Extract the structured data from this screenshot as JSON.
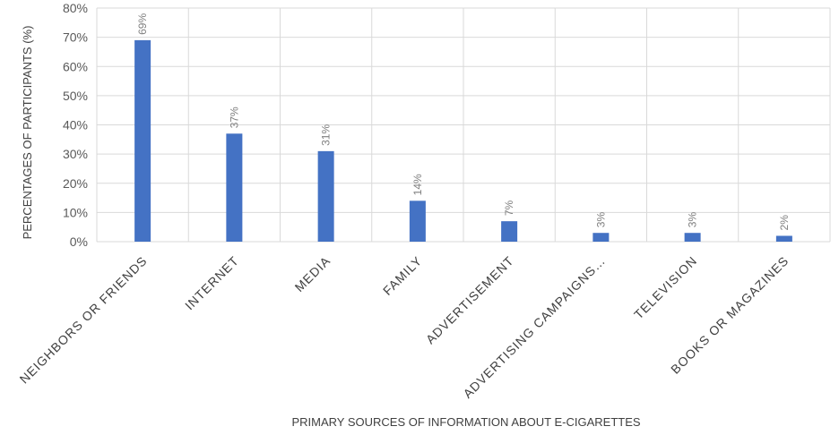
{
  "chart_data": {
    "type": "bar",
    "categories": [
      "NEIGHBORS OR FRIENDS",
      "INTERNET",
      "MEDIA",
      "FAMILY",
      "ADVERTISEMENT",
      "ADVERTISING CAMPAIGNS…",
      "TELEVISION",
      "BOOKS OR MAGAZINES"
    ],
    "values": [
      69,
      37,
      31,
      14,
      7,
      3,
      3,
      2
    ],
    "data_labels": [
      "69%",
      "37%",
      "31%",
      "14%",
      "7%",
      "3%",
      "3%",
      "2%"
    ],
    "title": "",
    "xlabel": "PRIMARY SOURCES OF INFORMATION ABOUT E-CIGARETTES",
    "ylabel": "PERCENTAGES OF PARTICIPANTS (%)",
    "ylim": [
      0,
      80
    ],
    "yticks": [
      0,
      10,
      20,
      30,
      40,
      50,
      60,
      70,
      80
    ],
    "ytick_labels": [
      "0%",
      "10%",
      "20%",
      "30%",
      "40%",
      "50%",
      "60%",
      "70%",
      "80%"
    ],
    "grid": true,
    "legend": "none",
    "bar_color": "#4472c4"
  }
}
